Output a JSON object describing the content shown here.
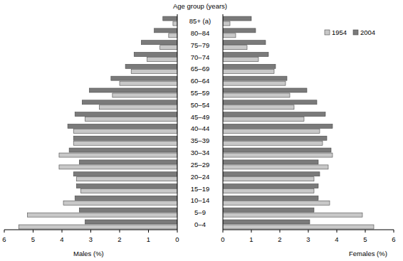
{
  "chart_data": [
    {
      "type": "bar",
      "orientation": "horizontal",
      "x_label": "Males (%)",
      "y_label": "Age group (years)",
      "categories": [
        "0–4",
        "5–9",
        "10–14",
        "15–19",
        "20–24",
        "25–29",
        "30–34",
        "35–39",
        "40–44",
        "45–49",
        "50–54",
        "55–59",
        "60–64",
        "65–69",
        "70–74",
        "75–79",
        "80–84",
        "85+ (a)"
      ],
      "series": [
        {
          "color": "#c8c8c8",
          "values": [
            5.5,
            5.2,
            3.95,
            3.35,
            3.5,
            4.1,
            4.1,
            3.6,
            3.6,
            3.2,
            2.7,
            2.25,
            2.0,
            1.6,
            1.05,
            0.6,
            0.3,
            0.15
          ]
        },
        {
          "color": "#7a7a7a",
          "values": [
            3.2,
            3.4,
            3.55,
            3.5,
            3.6,
            3.4,
            3.75,
            3.6,
            3.8,
            3.55,
            3.3,
            3.05,
            2.3,
            1.8,
            1.5,
            1.25,
            0.8,
            0.5
          ]
        }
      ],
      "xlim": [
        6,
        0
      ],
      "xticks": [
        6,
        5,
        4,
        3,
        2,
        1,
        0
      ]
    },
    {
      "type": "bar",
      "orientation": "horizontal",
      "x_label": "Females (%)",
      "legend": "top-right",
      "categories": [
        "0–4",
        "5–9",
        "10–14",
        "15–19",
        "20–24",
        "25–29",
        "30–34",
        "35–39",
        "40–44",
        "45–49",
        "50–54",
        "55–59",
        "60–64",
        "65–69",
        "70–74",
        "75–79",
        "80–84",
        "85+ (a)"
      ],
      "series": [
        {
          "name": "1954",
          "color": "#c8c8c8",
          "values": [
            5.3,
            4.9,
            3.75,
            3.2,
            3.2,
            3.7,
            3.85,
            3.5,
            3.4,
            2.85,
            2.5,
            2.35,
            2.2,
            1.8,
            1.25,
            0.85,
            0.45,
            0.25
          ]
        },
        {
          "name": "2004",
          "color": "#7a7a7a",
          "values": [
            3.05,
            3.2,
            3.35,
            3.35,
            3.4,
            3.35,
            3.8,
            3.65,
            3.85,
            3.6,
            3.3,
            2.95,
            2.25,
            1.85,
            1.6,
            1.5,
            1.15,
            1.0
          ]
        }
      ],
      "xlim": [
        0,
        6
      ],
      "xticks": [
        0,
        1,
        2,
        3,
        4,
        5,
        6
      ]
    }
  ]
}
